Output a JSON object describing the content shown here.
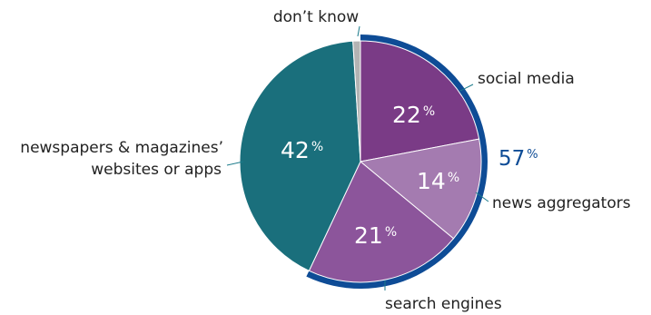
{
  "chart_data": {
    "type": "pie",
    "start_angle_deg": 0,
    "slices": [
      {
        "label": "social media",
        "value": 22,
        "display": "22",
        "color": "#7a3b86"
      },
      {
        "label": "news aggregators",
        "value": 14,
        "display": "14",
        "color": "#a47bb0"
      },
      {
        "label": "search engines",
        "value": 21,
        "display": "21",
        "color": "#8c559b"
      },
      {
        "label": "newspapers & magazines’ websites or apps",
        "label_lines": [
          "newspapers & magazines’",
          "websites or apps"
        ],
        "value": 42,
        "display": "42",
        "color": "#1a6f7c"
      },
      {
        "label": "don’t know",
        "value": 1,
        "display": "",
        "color": "#b3b3b3"
      }
    ],
    "percent_sign": "%",
    "group_total": {
      "value": 57,
      "display": "57",
      "covers": [
        "social media",
        "news aggregators",
        "search engines"
      ],
      "color": "#0e4c96"
    }
  }
}
